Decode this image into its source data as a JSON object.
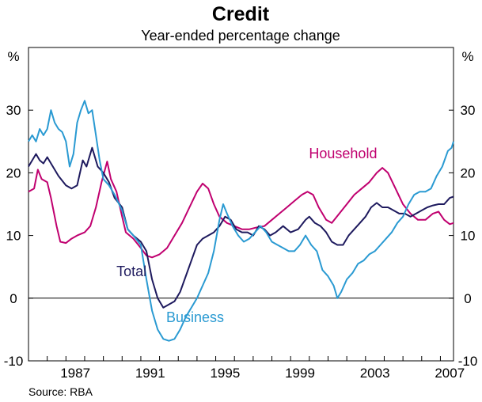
{
  "chart_data": {
    "type": "line",
    "title": "Credit",
    "subtitle": "Year-ended percentage change",
    "ylabel_left": "%",
    "ylabel_right": "%",
    "ylim": [
      -10,
      40
    ],
    "xlim": [
      1985.0,
      2007.7
    ],
    "y_ticks": [
      -10,
      0,
      10,
      20,
      30
    ],
    "x_ticks": [
      1987,
      1991,
      1995,
      1999,
      2003,
      2007
    ],
    "grid": false,
    "zero_line": true,
    "source": "Source: RBA",
    "series": [
      {
        "name": "Household",
        "color": "#c0006f",
        "points": [
          [
            1985.0,
            17.0
          ],
          [
            1985.3,
            17.5
          ],
          [
            1985.5,
            20.5
          ],
          [
            1985.7,
            19.0
          ],
          [
            1986.0,
            18.5
          ],
          [
            1986.2,
            16.0
          ],
          [
            1986.5,
            11.5
          ],
          [
            1986.7,
            9.0
          ],
          [
            1987.0,
            8.8
          ],
          [
            1987.3,
            9.5
          ],
          [
            1987.6,
            10.0
          ],
          [
            1988.0,
            10.5
          ],
          [
            1988.3,
            11.5
          ],
          [
            1988.6,
            14.5
          ],
          [
            1988.9,
            18.5
          ],
          [
            1989.2,
            21.8
          ],
          [
            1989.4,
            19.0
          ],
          [
            1989.7,
            17.0
          ],
          [
            1990.0,
            13.0
          ],
          [
            1990.2,
            10.5
          ],
          [
            1990.6,
            9.5
          ],
          [
            1991.0,
            8.0
          ],
          [
            1991.3,
            6.8
          ],
          [
            1991.6,
            6.5
          ],
          [
            1992.0,
            7.0
          ],
          [
            1992.4,
            8.0
          ],
          [
            1992.8,
            10.0
          ],
          [
            1993.2,
            12.0
          ],
          [
            1993.6,
            14.5
          ],
          [
            1994.0,
            17.0
          ],
          [
            1994.3,
            18.3
          ],
          [
            1994.6,
            17.5
          ],
          [
            1994.9,
            15.0
          ],
          [
            1995.2,
            13.0
          ],
          [
            1995.6,
            12.0
          ],
          [
            1996.0,
            11.5
          ],
          [
            1996.4,
            11.0
          ],
          [
            1996.8,
            11.0
          ],
          [
            1997.2,
            11.3
          ],
          [
            1997.6,
            11.5
          ],
          [
            1998.0,
            12.5
          ],
          [
            1998.4,
            13.5
          ],
          [
            1998.8,
            14.5
          ],
          [
            1999.2,
            15.5
          ],
          [
            1999.6,
            16.5
          ],
          [
            1999.9,
            17.0
          ],
          [
            2000.2,
            16.5
          ],
          [
            2000.5,
            14.5
          ],
          [
            2000.9,
            12.5
          ],
          [
            2001.2,
            12.0
          ],
          [
            2001.6,
            13.5
          ],
          [
            2002.0,
            15.0
          ],
          [
            2002.4,
            16.5
          ],
          [
            2002.8,
            17.5
          ],
          [
            2003.2,
            18.5
          ],
          [
            2003.6,
            20.0
          ],
          [
            2003.9,
            20.8
          ],
          [
            2004.2,
            20.0
          ],
          [
            2004.6,
            17.5
          ],
          [
            2005.0,
            15.0
          ],
          [
            2005.4,
            13.5
          ],
          [
            2005.8,
            12.5
          ],
          [
            2006.2,
            12.5
          ],
          [
            2006.6,
            13.5
          ],
          [
            2006.9,
            13.8
          ],
          [
            2007.2,
            12.5
          ],
          [
            2007.5,
            11.8
          ],
          [
            2007.7,
            12.0
          ]
        ]
      },
      {
        "name": "Total",
        "color": "#1e1a5e",
        "points": [
          [
            1985.0,
            21.0
          ],
          [
            1985.2,
            22.0
          ],
          [
            1985.4,
            23.0
          ],
          [
            1985.6,
            22.0
          ],
          [
            1985.8,
            21.5
          ],
          [
            1986.0,
            22.5
          ],
          [
            1986.3,
            21.0
          ],
          [
            1986.6,
            19.5
          ],
          [
            1987.0,
            18.0
          ],
          [
            1987.3,
            17.5
          ],
          [
            1987.6,
            18.0
          ],
          [
            1987.9,
            22.0
          ],
          [
            1988.1,
            21.0
          ],
          [
            1988.4,
            24.0
          ],
          [
            1988.7,
            21.0
          ],
          [
            1989.0,
            20.0
          ],
          [
            1989.3,
            18.5
          ],
          [
            1989.6,
            16.0
          ],
          [
            1990.0,
            14.5
          ],
          [
            1990.3,
            11.0
          ],
          [
            1990.6,
            10.0
          ],
          [
            1991.0,
            9.0
          ],
          [
            1991.3,
            7.5
          ],
          [
            1991.6,
            3.0
          ],
          [
            1991.9,
            0.0
          ],
          [
            1992.2,
            -1.5
          ],
          [
            1992.5,
            -1.0
          ],
          [
            1992.8,
            -0.5
          ],
          [
            1993.1,
            1.0
          ],
          [
            1993.4,
            3.5
          ],
          [
            1993.7,
            6.0
          ],
          [
            1994.0,
            8.5
          ],
          [
            1994.3,
            9.5
          ],
          [
            1994.6,
            10.0
          ],
          [
            1994.9,
            10.5
          ],
          [
            1995.2,
            11.5
          ],
          [
            1995.5,
            13.0
          ],
          [
            1995.8,
            12.5
          ],
          [
            1996.1,
            11.0
          ],
          [
            1996.4,
            10.5
          ],
          [
            1996.7,
            10.5
          ],
          [
            1997.0,
            10.0
          ],
          [
            1997.3,
            11.5
          ],
          [
            1997.6,
            11.0
          ],
          [
            1997.9,
            10.0
          ],
          [
            1998.2,
            10.5
          ],
          [
            1998.6,
            11.5
          ],
          [
            1999.0,
            10.5
          ],
          [
            1999.4,
            11.0
          ],
          [
            1999.8,
            12.5
          ],
          [
            2000.0,
            13.0
          ],
          [
            2000.3,
            12.0
          ],
          [
            2000.6,
            11.5
          ],
          [
            2000.9,
            10.5
          ],
          [
            2001.2,
            9.0
          ],
          [
            2001.5,
            8.5
          ],
          [
            2001.8,
            8.5
          ],
          [
            2002.1,
            10.0
          ],
          [
            2002.4,
            11.0
          ],
          [
            2002.7,
            12.0
          ],
          [
            2003.0,
            13.0
          ],
          [
            2003.3,
            14.5
          ],
          [
            2003.6,
            15.2
          ],
          [
            2003.9,
            14.5
          ],
          [
            2004.2,
            14.5
          ],
          [
            2004.5,
            14.0
          ],
          [
            2004.8,
            13.5
          ],
          [
            2005.1,
            13.5
          ],
          [
            2005.4,
            13.0
          ],
          [
            2005.7,
            13.5
          ],
          [
            2006.0,
            14.0
          ],
          [
            2006.3,
            14.5
          ],
          [
            2006.6,
            14.8
          ],
          [
            2006.9,
            15.0
          ],
          [
            2007.2,
            15.0
          ],
          [
            2007.5,
            16.0
          ],
          [
            2007.7,
            16.2
          ]
        ]
      },
      {
        "name": "Business",
        "color": "#2a9ad2",
        "points": [
          [
            1985.0,
            25.0
          ],
          [
            1985.2,
            26.0
          ],
          [
            1985.4,
            25.0
          ],
          [
            1985.6,
            27.0
          ],
          [
            1985.8,
            26.0
          ],
          [
            1986.0,
            27.0
          ],
          [
            1986.2,
            30.0
          ],
          [
            1986.4,
            28.0
          ],
          [
            1986.6,
            27.0
          ],
          [
            1986.8,
            26.5
          ],
          [
            1987.0,
            25.0
          ],
          [
            1987.2,
            21.0
          ],
          [
            1987.4,
            23.0
          ],
          [
            1987.6,
            28.0
          ],
          [
            1987.8,
            30.0
          ],
          [
            1988.0,
            31.5
          ],
          [
            1988.2,
            29.5
          ],
          [
            1988.4,
            30.0
          ],
          [
            1988.6,
            26.0
          ],
          [
            1988.8,
            22.0
          ],
          [
            1989.0,
            19.0
          ],
          [
            1989.3,
            18.0
          ],
          [
            1989.6,
            16.5
          ],
          [
            1990.0,
            14.0
          ],
          [
            1990.3,
            11.0
          ],
          [
            1990.6,
            10.0
          ],
          [
            1991.0,
            8.5
          ],
          [
            1991.3,
            3.0
          ],
          [
            1991.6,
            -2.0
          ],
          [
            1991.9,
            -5.0
          ],
          [
            1992.2,
            -6.5
          ],
          [
            1992.5,
            -6.8
          ],
          [
            1992.8,
            -6.5
          ],
          [
            1993.1,
            -5.0
          ],
          [
            1993.4,
            -3.0
          ],
          [
            1993.7,
            -1.5
          ],
          [
            1994.0,
            0.0
          ],
          [
            1994.3,
            2.0
          ],
          [
            1994.6,
            4.0
          ],
          [
            1994.9,
            7.5
          ],
          [
            1995.2,
            12.5
          ],
          [
            1995.4,
            15.0
          ],
          [
            1995.6,
            13.5
          ],
          [
            1995.9,
            11.5
          ],
          [
            1996.2,
            10.0
          ],
          [
            1996.5,
            9.0
          ],
          [
            1996.8,
            9.5
          ],
          [
            1997.1,
            10.5
          ],
          [
            1997.4,
            11.5
          ],
          [
            1997.7,
            10.5
          ],
          [
            1998.0,
            9.0
          ],
          [
            1998.3,
            8.5
          ],
          [
            1998.6,
            8.0
          ],
          [
            1998.9,
            7.5
          ],
          [
            1999.2,
            7.5
          ],
          [
            1999.5,
            8.5
          ],
          [
            1999.8,
            10.0
          ],
          [
            2000.1,
            8.5
          ],
          [
            2000.4,
            7.5
          ],
          [
            2000.7,
            4.5
          ],
          [
            2001.0,
            3.5
          ],
          [
            2001.3,
            2.0
          ],
          [
            2001.5,
            0.0
          ],
          [
            2001.7,
            1.0
          ],
          [
            2002.0,
            3.0
          ],
          [
            2002.3,
            4.0
          ],
          [
            2002.6,
            5.5
          ],
          [
            2002.9,
            6.0
          ],
          [
            2003.2,
            7.0
          ],
          [
            2003.5,
            7.5
          ],
          [
            2003.8,
            8.5
          ],
          [
            2004.1,
            9.5
          ],
          [
            2004.4,
            10.5
          ],
          [
            2004.7,
            12.0
          ],
          [
            2005.0,
            13.0
          ],
          [
            2005.3,
            15.0
          ],
          [
            2005.6,
            16.5
          ],
          [
            2005.9,
            17.0
          ],
          [
            2006.2,
            17.0
          ],
          [
            2006.5,
            17.5
          ],
          [
            2006.8,
            19.5
          ],
          [
            2007.1,
            21.0
          ],
          [
            2007.4,
            23.5
          ],
          [
            2007.6,
            24.0
          ],
          [
            2007.7,
            25.0
          ]
        ]
      }
    ],
    "annotations": [
      {
        "text": "Household",
        "series": "Household",
        "at": [
          2001.8,
          22.3
        ]
      },
      {
        "text": "Total",
        "series": "Total",
        "at": [
          1990.5,
          3.5
        ]
      },
      {
        "text": "Business",
        "series": "Business",
        "at": [
          1993.9,
          -3.8
        ]
      }
    ]
  }
}
